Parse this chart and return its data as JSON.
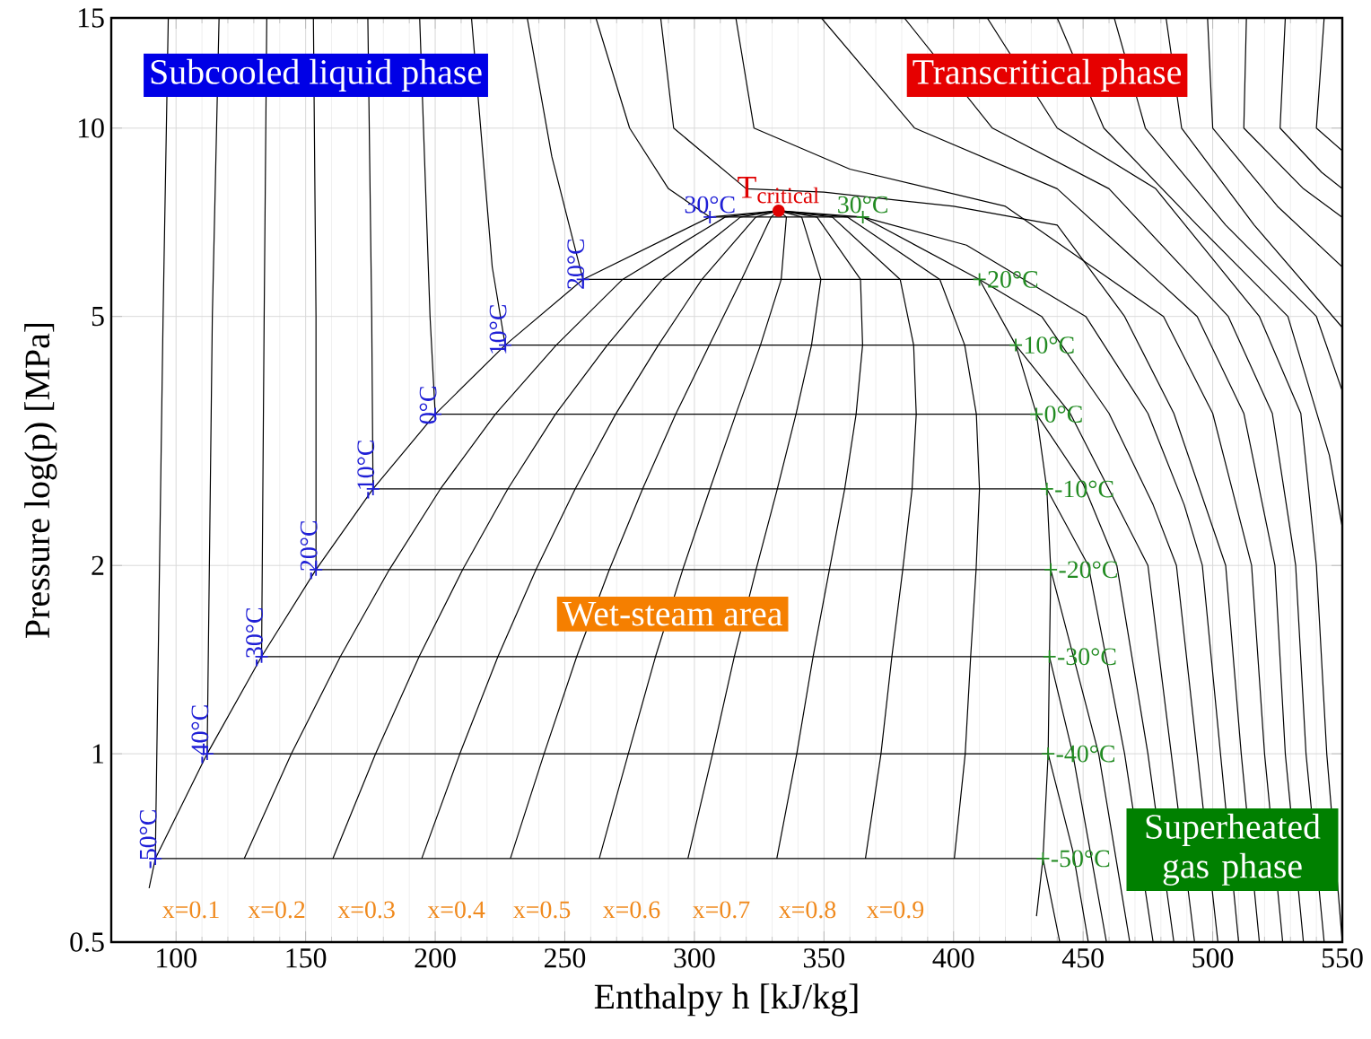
{
  "chart_data": {
    "type": "line",
    "xlabel": "Enthalpy h [kJ/kg]",
    "ylabel": "Pressure log(p) [MPa]",
    "xlim": [
      75,
      550
    ],
    "ylim": [
      0.5,
      15
    ],
    "xticks": [
      100,
      150,
      200,
      250,
      300,
      350,
      400,
      450,
      500,
      550
    ],
    "yticks": [
      0.5,
      1,
      2,
      5,
      10,
      15
    ],
    "log": "y",
    "grid": true,
    "series": [
      {
        "color": "#000000",
        "x": [
          97,
          95,
          92,
          434.5,
          441
        ],
        "values": [
          15,
          5,
          0.68,
          0.68,
          0.5
        ]
      },
      {
        "color": "#000000",
        "x": [
          116.6,
          114,
          112,
          436.5,
          446,
          452
        ],
        "values": [
          15,
          5,
          1.0,
          1.0,
          0.7,
          0.5
        ]
      },
      {
        "color": "#000000",
        "x": [
          135,
          134,
          133,
          437,
          446,
          459
        ],
        "values": [
          15,
          5,
          1.43,
          1.43,
          1,
          0.5
        ]
      },
      {
        "color": "#000000",
        "x": [
          153,
          154,
          154,
          437.5,
          456,
          468
        ],
        "values": [
          15,
          5,
          1.97,
          1.97,
          1,
          0.5
        ]
      },
      {
        "color": "#000000",
        "x": [
          174,
          175.5,
          176,
          436,
          452,
          466,
          477
        ],
        "values": [
          15,
          5,
          2.65,
          2.65,
          2,
          1,
          0.5
        ]
      },
      {
        "color": "#000000",
        "x": [
          194,
          198,
          200,
          432,
          450,
          463,
          475,
          485
        ],
        "values": [
          15,
          5,
          3.49,
          3.49,
          2.7,
          2,
          1,
          0.5
        ]
      },
      {
        "color": "#000000",
        "x": [
          214,
          222,
          227,
          424,
          445,
          463,
          475,
          484,
          493
        ],
        "values": [
          15,
          6,
          4.5,
          4.5,
          3.5,
          2.5,
          2,
          1,
          0.5
        ]
      },
      {
        "color": "#000000",
        "x": [
          235.5,
          245,
          257,
          410,
          434,
          460,
          477,
          486,
          494,
          502
        ],
        "values": [
          15,
          9,
          5.73,
          5.73,
          5,
          3.5,
          2.5,
          2,
          1,
          0.5
        ]
      },
      {
        "color": "#000000",
        "x": [
          262,
          275,
          290,
          306,
          365,
          405,
          451,
          475,
          489,
          496,
          503,
          510
        ],
        "values": [
          15,
          10,
          8,
          7.21,
          7.21,
          6.5,
          5,
          3.5,
          2.5,
          2,
          1,
          0.5
        ]
      },
      {
        "color": "#000000",
        "x": [
          287,
          292,
          320,
          350,
          400,
          440,
          466,
          485,
          505,
          511,
          518
        ],
        "values": [
          15,
          10,
          8,
          7.9,
          7.5,
          7,
          5,
          3.5,
          2,
          1,
          0.5
        ]
      },
      {
        "color": "#000000",
        "x": [
          316,
          323,
          360,
          420,
          481,
          500,
          515,
          520,
          527
        ],
        "values": [
          15,
          10,
          8.6,
          7.5,
          5,
          3.5,
          2,
          1,
          0.5
        ]
      },
      {
        "color": "#000000",
        "x": [
          349,
          385,
          440,
          494,
          512,
          524,
          528,
          535
        ],
        "values": [
          15,
          10,
          8,
          5,
          3.5,
          2,
          1,
          0.5
        ]
      },
      {
        "color": "#000000",
        "x": [
          381,
          415,
          460,
          506,
          523,
          532,
          536,
          543
        ],
        "values": [
          15,
          10,
          8,
          5,
          3.5,
          2,
          1,
          0.5
        ]
      },
      {
        "color": "#000000",
        "x": [
          413,
          440,
          478,
          518,
          534,
          540,
          544,
          550
        ],
        "values": [
          15,
          10,
          8,
          5,
          3.5,
          2,
          1,
          0.5
        ]
      },
      {
        "color": "#000000",
        "x": [
          440,
          458,
          494,
          529,
          545,
          550
        ],
        "values": [
          15,
          10,
          7,
          5,
          3,
          2.3
        ]
      },
      {
        "color": "#000000",
        "x": [
          462,
          474,
          505,
          540,
          550
        ],
        "values": [
          15,
          10,
          7,
          5,
          3.8
        ]
      },
      {
        "color": "#000000",
        "x": [
          482,
          488,
          516,
          550
        ],
        "values": [
          15,
          10,
          7,
          4.8
        ]
      },
      {
        "color": "#000000",
        "x": [
          498,
          500,
          525,
          550
        ],
        "values": [
          15,
          10,
          7.5,
          6
        ]
      },
      {
        "color": "#000000",
        "x": [
          513,
          512,
          535,
          550
        ],
        "values": [
          15,
          10,
          8,
          7.2
        ]
      },
      {
        "color": "#000000",
        "x": [
          528,
          526,
          542,
          550
        ],
        "values": [
          15,
          10,
          8.5,
          8
        ]
      },
      {
        "color": "#000000",
        "x": [
          543,
          540,
          550
        ],
        "values": [
          15,
          10,
          9.2
        ]
      },
      {
        "color": "#000000",
        "x": [
          126.3,
          144.5,
          163.4,
          182.3,
          202,
          223.2,
          246.7,
          272.3,
          311.9,
          332.5
        ],
        "values": [
          0.68,
          1.0,
          1.43,
          1.97,
          2.65,
          3.49,
          4.5,
          5.73,
          7.21,
          7.38
        ]
      },
      {
        "color": "#000000",
        "x": [
          160.5,
          177,
          193.8,
          210.6,
          228,
          246.4,
          266.4,
          287.6,
          317.8,
          332.5
        ],
        "values": [
          0.68,
          1.0,
          1.43,
          1.97,
          2.65,
          3.49,
          4.5,
          5.73,
          7.21,
          7.38
        ]
      },
      {
        "color": "#000000",
        "x": [
          194.8,
          209.5,
          224.2,
          238.9,
          254,
          269.6,
          286.1,
          302.9,
          323.7,
          332.5
        ],
        "values": [
          0.68,
          1.0,
          1.43,
          1.97,
          2.65,
          3.49,
          4.5,
          5.73,
          7.21,
          7.38
        ]
      },
      {
        "color": "#000000",
        "x": [
          229,
          242,
          254.6,
          267.2,
          280,
          292.8,
          305.8,
          318.2,
          329.6,
          332.5
        ],
        "values": [
          0.68,
          1.0,
          1.43,
          1.97,
          2.65,
          3.49,
          4.5,
          5.73,
          7.21,
          7.38
        ]
      },
      {
        "color": "#000000",
        "x": [
          263.3,
          274.5,
          285,
          295.5,
          306,
          316,
          325.5,
          333.5,
          335.5,
          332.5
        ],
        "values": [
          0.68,
          1.0,
          1.43,
          1.97,
          2.65,
          3.49,
          4.5,
          5.73,
          7.21,
          7.38
        ]
      },
      {
        "color": "#000000",
        "x": [
          297.5,
          307,
          315.4,
          323.8,
          332,
          339.2,
          345.2,
          348.8,
          341.4,
          332.5
        ],
        "values": [
          0.68,
          1.0,
          1.43,
          1.97,
          2.65,
          3.49,
          4.5,
          5.73,
          7.21,
          7.38
        ]
      },
      {
        "color": "#000000",
        "x": [
          331.8,
          339.5,
          345.8,
          352.1,
          358,
          362.4,
          364.9,
          364.1,
          347.3,
          332.5
        ],
        "values": [
          0.68,
          1.0,
          1.43,
          1.97,
          2.65,
          3.49,
          4.5,
          5.73,
          7.21,
          7.38
        ]
      },
      {
        "color": "#000000",
        "x": [
          366,
          372,
          376.2,
          380.4,
          384,
          385.6,
          384.6,
          379.4,
          353.2,
          332.5
        ],
        "values": [
          0.68,
          1.0,
          1.43,
          1.97,
          2.65,
          3.49,
          4.5,
          5.73,
          7.21,
          7.38
        ]
      },
      {
        "color": "#000000",
        "x": [
          400.3,
          404.5,
          406.6,
          408.7,
          410,
          408.8,
          404.3,
          394.7,
          359.1,
          332.5
        ],
        "values": [
          0.68,
          1.0,
          1.43,
          1.97,
          2.65,
          3.49,
          4.5,
          5.73,
          7.21,
          7.38
        ]
      },
      {
        "color": "#000000",
        "x": [
          89.6,
          92,
          112,
          133,
          154,
          176,
          200,
          227,
          257,
          306,
          332.5,
          365,
          410,
          424,
          432,
          436,
          437.5,
          437,
          436.5,
          434.5,
          432
        ],
        "values": [
          0.61,
          0.68,
          1.0,
          1.43,
          1.97,
          2.65,
          3.49,
          4.5,
          5.73,
          7.21,
          7.38,
          7.21,
          5.73,
          4.5,
          3.49,
          2.65,
          1.97,
          1.43,
          1.0,
          0.68,
          0.55
        ]
      },
      {
        "type": "scatter",
        "marker": "cross",
        "color": "#1f1fd6",
        "x": [
          92,
          112,
          133,
          154,
          176,
          200,
          227,
          257,
          306
        ],
        "values": [
          0.68,
          1.0,
          1.43,
          1.97,
          2.65,
          3.49,
          4.5,
          5.73,
          7.21
        ]
      },
      {
        "type": "scatter",
        "marker": "cross",
        "color": "#228b22",
        "x": [
          434.5,
          436.5,
          437,
          437.5,
          436,
          432,
          424,
          410,
          365
        ],
        "values": [
          0.68,
          1.0,
          1.43,
          1.97,
          2.65,
          3.49,
          4.5,
          5.73,
          7.21
        ]
      },
      {
        "type": "scatter",
        "marker": "circle",
        "color": "#e00000",
        "x": [
          332.5
        ],
        "values": [
          7.38
        ]
      }
    ],
    "annotations": [
      "Subcooled liquid phase",
      "Transcritical phase",
      "Wet-steam area",
      "Superheated gas phase",
      "x=0.1",
      "x=0.2",
      "x=0.3",
      "x=0.4",
      "x=0.5",
      "x=0.6",
      "x=0.7",
      "x=0.8",
      "x=0.9",
      {
        "text": "T$_{critical}$",
        "x": 332.5,
        "y": 7.38
      },
      {
        "text": "-50°C",
        "x": 92,
        "y": 0.68
      },
      {
        "text": "-40°C",
        "x": 112,
        "y": 1.0
      },
      {
        "text": "-30°C",
        "x": 133,
        "y": 1.43
      },
      {
        "text": "-20°C",
        "x": 154,
        "y": 1.97
      },
      {
        "text": "-10°C",
        "x": 176,
        "y": 2.65
      },
      {
        "text": "0°C",
        "x": 200,
        "y": 3.49
      },
      {
        "text": "10°C",
        "x": 227,
        "y": 4.5
      },
      {
        "text": "20°C",
        "x": 257,
        "y": 5.73
      },
      {
        "text": "30°C",
        "x": 306,
        "y": 7.21
      },
      {
        "text": "-50°C",
        "x": 434.5,
        "y": 0.68
      },
      {
        "text": "-40°C",
        "x": 436.5,
        "y": 1.0
      },
      {
        "text": "-30°C",
        "x": 437,
        "y": 1.43
      },
      {
        "text": "-20°C",
        "x": 437.5,
        "y": 1.97
      },
      {
        "text": "-10°C",
        "x": 436,
        "y": 2.65
      },
      {
        "text": "0°C",
        "x": 432,
        "y": 3.49
      },
      {
        "text": "10°C",
        "x": 424,
        "y": 4.5
      },
      {
        "text": "20°C",
        "x": 410,
        "y": 5.73
      },
      {
        "text": "30°C",
        "x": 365,
        "y": 7.21
      }
    ]
  }
}
